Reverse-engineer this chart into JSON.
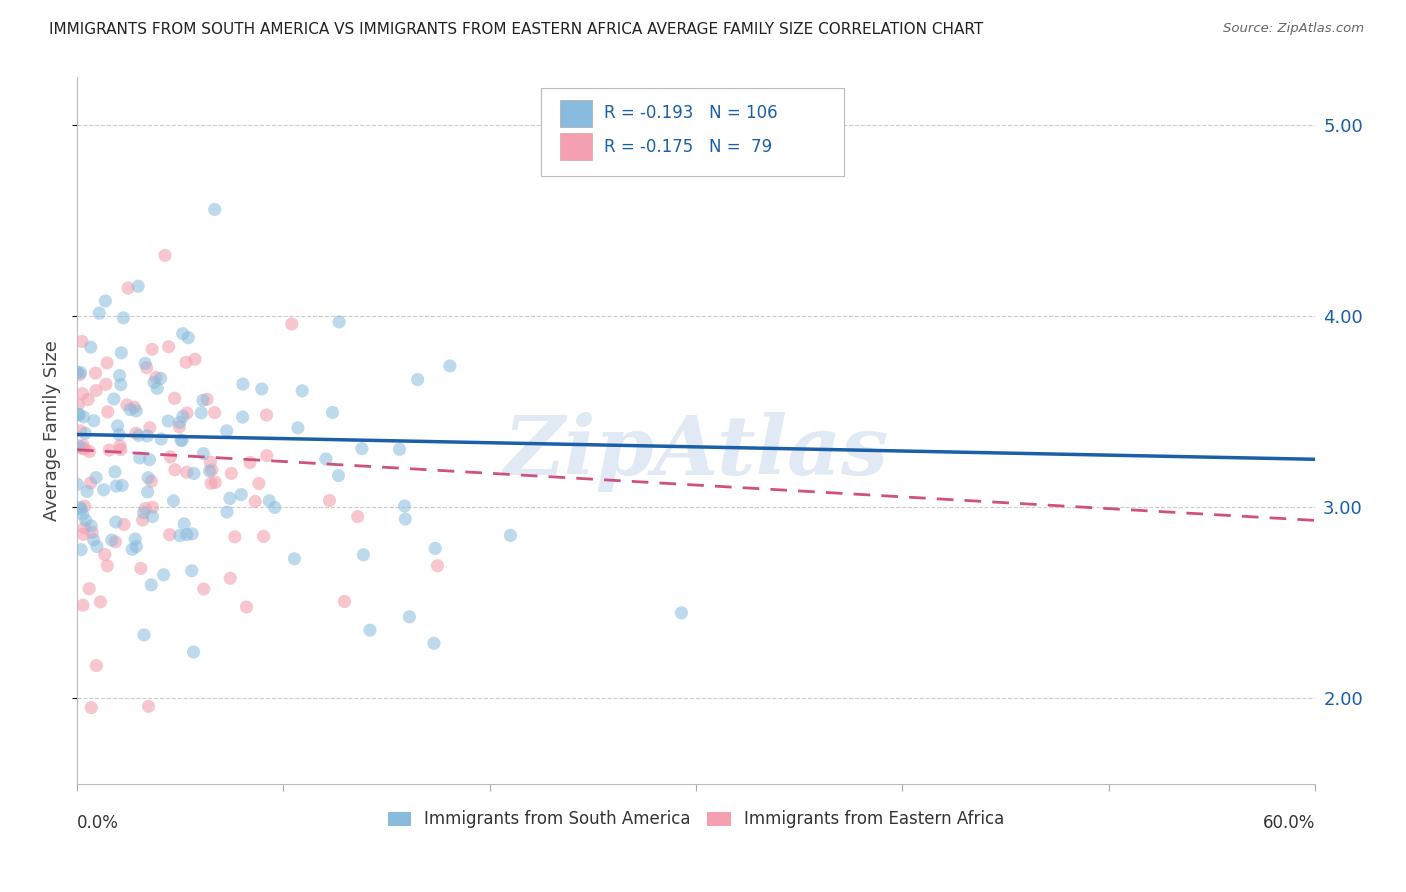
{
  "title": "IMMIGRANTS FROM SOUTH AMERICA VS IMMIGRANTS FROM EASTERN AFRICA AVERAGE FAMILY SIZE CORRELATION CHART",
  "source": "Source: ZipAtlas.com",
  "ylabel": "Average Family Size",
  "xlim": [
    0.0,
    0.6
  ],
  "ylim": [
    1.55,
    5.25
  ],
  "yticks": [
    2.0,
    3.0,
    4.0,
    5.0
  ],
  "xtick_positions": [
    0.0,
    0.1,
    0.2,
    0.3,
    0.4,
    0.5,
    0.6
  ],
  "series1": {
    "label": "Immigrants from South America",
    "color": "#88bbdd",
    "line_color": "#1a5fa8",
    "R": -0.193,
    "N": 106,
    "legend_text1": "R = -0.193",
    "legend_text2": "N = 106"
  },
  "series2": {
    "label": "Immigrants from Eastern Africa",
    "color": "#f4a0b0",
    "line_color": "#d05080",
    "R": -0.175,
    "N": 79,
    "legend_text1": "R = -0.175",
    "legend_text2": "N =  79"
  },
  "watermark": "ZipAtlas",
  "background_color": "#ffffff",
  "grid_color": "#cccccc",
  "seed": 12
}
